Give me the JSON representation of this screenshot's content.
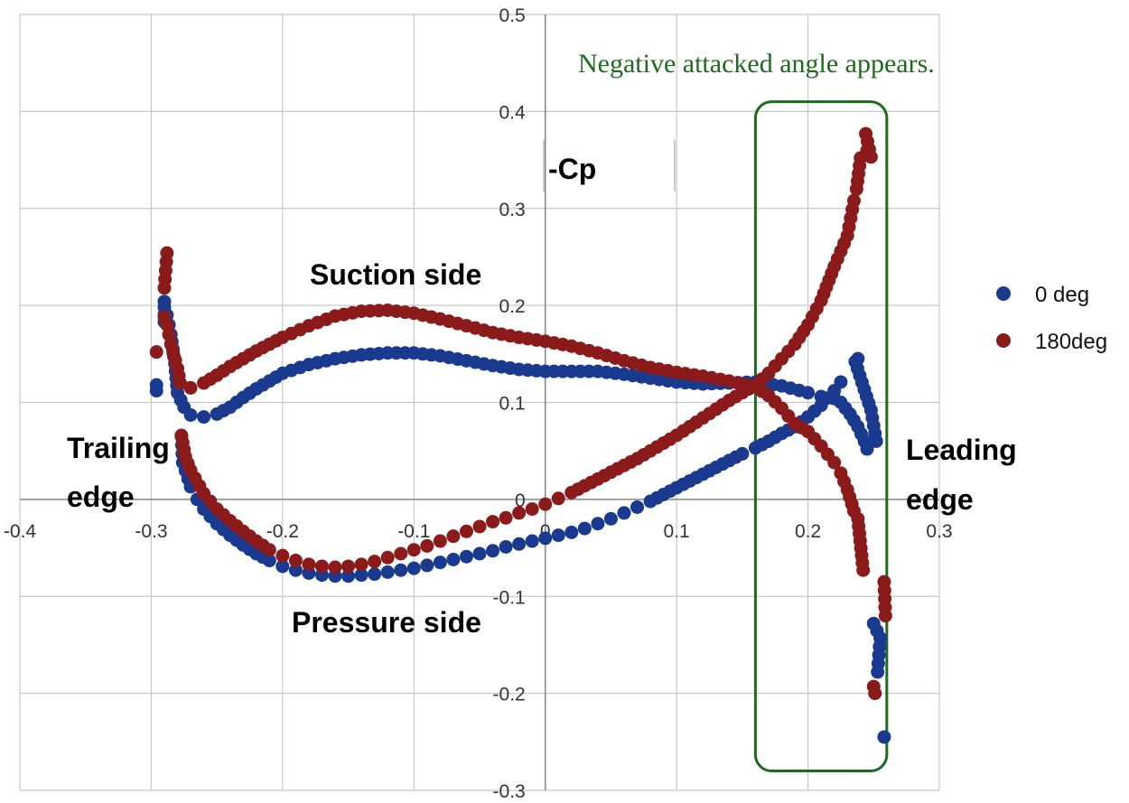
{
  "chart_data": {
    "type": "scatter",
    "title": "",
    "xlabel": "",
    "ylabel": "-Cp",
    "xlim": [
      -0.4,
      0.3
    ],
    "ylim": [
      -0.3,
      0.5
    ],
    "x_ticks": [
      "-0.4",
      "-0.3",
      "-0.2",
      "-0.1",
      "0",
      "0.1",
      "0.2",
      "0.3"
    ],
    "y_ticks": [
      "0.5",
      "0.4",
      "0.3",
      "0.2",
      "0.1",
      "0",
      "-0.1",
      "-0.2",
      "-0.3"
    ],
    "grid": true,
    "legend_position": "right",
    "colors": {
      "0deg": "#1a3a8f",
      "180deg": "#8b1a1a",
      "annotation": "#1e6b1e",
      "grid": "#c8c8c8"
    },
    "annotations": {
      "suction_side": "Suction side",
      "pressure_side": "Pressure side",
      "trailing_edge_1": "Trailing",
      "trailing_edge_2": "edge",
      "leading_edge_1": "Leading",
      "leading_edge_2": "edge",
      "note": "Negative attacked angle appears."
    },
    "highlight_region": {
      "x": [
        0.16,
        0.26
      ],
      "y": [
        -0.28,
        0.41
      ]
    },
    "series": [
      {
        "name": "0 deg",
        "upper": [
          [
            -0.296,
            0.112
          ],
          [
            -0.296,
            0.118
          ],
          [
            -0.29,
            0.183
          ],
          [
            -0.29,
            0.198
          ],
          [
            -0.29,
            0.204
          ],
          [
            -0.288,
            0.19
          ],
          [
            -0.285,
            0.17
          ],
          [
            -0.282,
            0.14
          ],
          [
            -0.28,
            0.11
          ],
          [
            -0.275,
            0.095
          ],
          [
            -0.27,
            0.087
          ],
          [
            -0.26,
            0.085
          ],
          [
            -0.25,
            0.088
          ],
          [
            -0.24,
            0.095
          ],
          [
            -0.23,
            0.105
          ],
          [
            -0.22,
            0.114
          ],
          [
            -0.21,
            0.122
          ],
          [
            -0.2,
            0.13
          ],
          [
            -0.18,
            0.139
          ],
          [
            -0.16,
            0.145
          ],
          [
            -0.14,
            0.149
          ],
          [
            -0.12,
            0.151
          ],
          [
            -0.1,
            0.151
          ],
          [
            -0.08,
            0.148
          ],
          [
            -0.06,
            0.143
          ],
          [
            -0.04,
            0.138
          ],
          [
            -0.02,
            0.134
          ],
          [
            0.0,
            0.132
          ],
          [
            0.02,
            0.132
          ],
          [
            0.04,
            0.132
          ],
          [
            0.06,
            0.129
          ],
          [
            0.08,
            0.125
          ],
          [
            0.1,
            0.121
          ],
          [
            0.12,
            0.119
          ],
          [
            0.14,
            0.12
          ],
          [
            0.16,
            0.121
          ],
          [
            0.18,
            0.117
          ],
          [
            0.2,
            0.11
          ],
          [
            0.21,
            0.106
          ],
          [
            0.22,
            0.104
          ],
          [
            0.225,
            0.1
          ],
          [
            0.232,
            0.088
          ],
          [
            0.238,
            0.075
          ],
          [
            0.243,
            0.06
          ],
          [
            0.245,
            0.052
          ],
          [
            0.252,
            0.06
          ],
          [
            0.248,
            0.092
          ],
          [
            0.236,
            0.142
          ],
          [
            0.238,
            0.145
          ]
        ],
        "lower": [
          [
            -0.277,
            0.065
          ],
          [
            -0.276,
            0.038
          ],
          [
            -0.27,
            0.013
          ],
          [
            -0.265,
            0.0
          ],
          [
            -0.26,
            -0.01
          ],
          [
            -0.25,
            -0.025
          ],
          [
            -0.24,
            -0.037
          ],
          [
            -0.23,
            -0.047
          ],
          [
            -0.22,
            -0.056
          ],
          [
            -0.21,
            -0.063
          ],
          [
            -0.2,
            -0.069
          ],
          [
            -0.19,
            -0.073
          ],
          [
            -0.18,
            -0.076
          ],
          [
            -0.17,
            -0.078
          ],
          [
            -0.16,
            -0.079
          ],
          [
            -0.15,
            -0.079
          ],
          [
            -0.14,
            -0.078
          ],
          [
            -0.13,
            -0.077
          ],
          [
            -0.12,
            -0.075
          ],
          [
            -0.11,
            -0.073
          ],
          [
            -0.1,
            -0.071
          ],
          [
            -0.09,
            -0.068
          ],
          [
            -0.08,
            -0.065
          ],
          [
            -0.07,
            -0.062
          ],
          [
            -0.06,
            -0.059
          ],
          [
            -0.05,
            -0.056
          ],
          [
            -0.04,
            -0.053
          ],
          [
            -0.03,
            -0.049
          ],
          [
            -0.02,
            -0.046
          ],
          [
            -0.01,
            -0.043
          ],
          [
            0.0,
            -0.04
          ],
          [
            0.01,
            -0.037
          ],
          [
            0.02,
            -0.034
          ],
          [
            0.03,
            -0.03
          ],
          [
            0.04,
            -0.025
          ],
          [
            0.05,
            -0.02
          ],
          [
            0.06,
            -0.014
          ],
          [
            0.07,
            -0.008
          ],
          [
            0.08,
            -0.002
          ],
          [
            0.09,
            0.005
          ],
          [
            0.1,
            0.012
          ],
          [
            0.11,
            0.019
          ],
          [
            0.12,
            0.026
          ],
          [
            0.13,
            0.033
          ],
          [
            0.14,
            0.04
          ],
          [
            0.15,
            0.047
          ],
          [
            0.16,
            0.053
          ],
          [
            0.17,
            0.06
          ],
          [
            0.18,
            0.068
          ],
          [
            0.19,
            0.075
          ],
          [
            0.2,
            0.085
          ],
          [
            0.21,
            0.097
          ],
          [
            0.22,
            0.112
          ],
          [
            0.225,
            0.121
          ],
          [
            0.25,
            -0.128
          ],
          [
            0.255,
            -0.143
          ],
          [
            0.253,
            -0.178
          ],
          [
            0.258,
            -0.245
          ]
        ]
      },
      {
        "name": "180deg",
        "upper": [
          [
            -0.296,
            0.152
          ],
          [
            -0.29,
            0.218
          ],
          [
            -0.288,
            0.254
          ],
          [
            -0.29,
            0.188
          ],
          [
            -0.288,
            0.18
          ],
          [
            -0.285,
            0.16
          ],
          [
            -0.28,
            0.135
          ],
          [
            -0.278,
            0.12
          ],
          [
            -0.27,
            0.115
          ],
          [
            -0.26,
            0.12
          ],
          [
            -0.25,
            0.128
          ],
          [
            -0.24,
            0.137
          ],
          [
            -0.23,
            0.145
          ],
          [
            -0.22,
            0.153
          ],
          [
            -0.2,
            0.167
          ],
          [
            -0.18,
            0.179
          ],
          [
            -0.16,
            0.189
          ],
          [
            -0.14,
            0.194
          ],
          [
            -0.12,
            0.195
          ],
          [
            -0.1,
            0.192
          ],
          [
            -0.08,
            0.186
          ],
          [
            -0.06,
            0.179
          ],
          [
            -0.04,
            0.172
          ],
          [
            -0.02,
            0.167
          ],
          [
            0.0,
            0.163
          ],
          [
            0.02,
            0.158
          ],
          [
            0.04,
            0.151
          ],
          [
            0.06,
            0.143
          ],
          [
            0.08,
            0.136
          ],
          [
            0.1,
            0.131
          ],
          [
            0.12,
            0.127
          ],
          [
            0.14,
            0.122
          ],
          [
            0.16,
            0.116
          ],
          [
            0.17,
            0.107
          ],
          [
            0.18,
            0.094
          ],
          [
            0.19,
            0.078
          ],
          [
            0.2,
            0.07
          ],
          [
            0.21,
            0.055
          ],
          [
            0.22,
            0.038
          ],
          [
            0.225,
            0.027
          ],
          [
            0.23,
            0.01
          ],
          [
            0.235,
            -0.012
          ],
          [
            0.238,
            -0.02
          ],
          [
            0.242,
            -0.073
          ],
          [
            0.25,
            -0.193
          ],
          [
            0.251,
            -0.2
          ],
          [
            0.258,
            -0.085
          ],
          [
            0.259,
            -0.12
          ]
        ],
        "lower": [
          [
            -0.277,
            0.066
          ],
          [
            -0.274,
            0.044
          ],
          [
            -0.27,
            0.03
          ],
          [
            -0.26,
            0.006
          ],
          [
            -0.25,
            -0.01
          ],
          [
            -0.24,
            -0.022
          ],
          [
            -0.23,
            -0.033
          ],
          [
            -0.22,
            -0.043
          ],
          [
            -0.21,
            -0.052
          ],
          [
            -0.2,
            -0.058
          ],
          [
            -0.19,
            -0.063
          ],
          [
            -0.18,
            -0.067
          ],
          [
            -0.17,
            -0.069
          ],
          [
            -0.16,
            -0.07
          ],
          [
            -0.15,
            -0.069
          ],
          [
            -0.14,
            -0.067
          ],
          [
            -0.13,
            -0.064
          ],
          [
            -0.12,
            -0.06
          ],
          [
            -0.11,
            -0.056
          ],
          [
            -0.1,
            -0.052
          ],
          [
            -0.09,
            -0.048
          ],
          [
            -0.08,
            -0.043
          ],
          [
            -0.07,
            -0.038
          ],
          [
            -0.06,
            -0.033
          ],
          [
            -0.05,
            -0.028
          ],
          [
            -0.04,
            -0.023
          ],
          [
            -0.03,
            -0.019
          ],
          [
            -0.02,
            -0.014
          ],
          [
            -0.01,
            -0.01
          ],
          [
            0.0,
            -0.005
          ],
          [
            0.01,
            0.001
          ],
          [
            0.02,
            0.007
          ],
          [
            0.03,
            0.014
          ],
          [
            0.04,
            0.021
          ],
          [
            0.05,
            0.028
          ],
          [
            0.06,
            0.035
          ],
          [
            0.07,
            0.042
          ],
          [
            0.08,
            0.05
          ],
          [
            0.09,
            0.058
          ],
          [
            0.1,
            0.066
          ],
          [
            0.11,
            0.075
          ],
          [
            0.12,
            0.084
          ],
          [
            0.13,
            0.093
          ],
          [
            0.14,
            0.102
          ],
          [
            0.15,
            0.11
          ],
          [
            0.16,
            0.118
          ],
          [
            0.17,
            0.13
          ],
          [
            0.18,
            0.145
          ],
          [
            0.19,
            0.16
          ],
          [
            0.2,
            0.18
          ],
          [
            0.21,
            0.205
          ],
          [
            0.22,
            0.24
          ],
          [
            0.23,
            0.272
          ],
          [
            0.235,
            0.308
          ],
          [
            0.237,
            0.32
          ],
          [
            0.24,
            0.352
          ],
          [
            0.245,
            0.36
          ],
          [
            0.248,
            0.353
          ],
          [
            0.244,
            0.377
          ]
        ]
      }
    ]
  }
}
